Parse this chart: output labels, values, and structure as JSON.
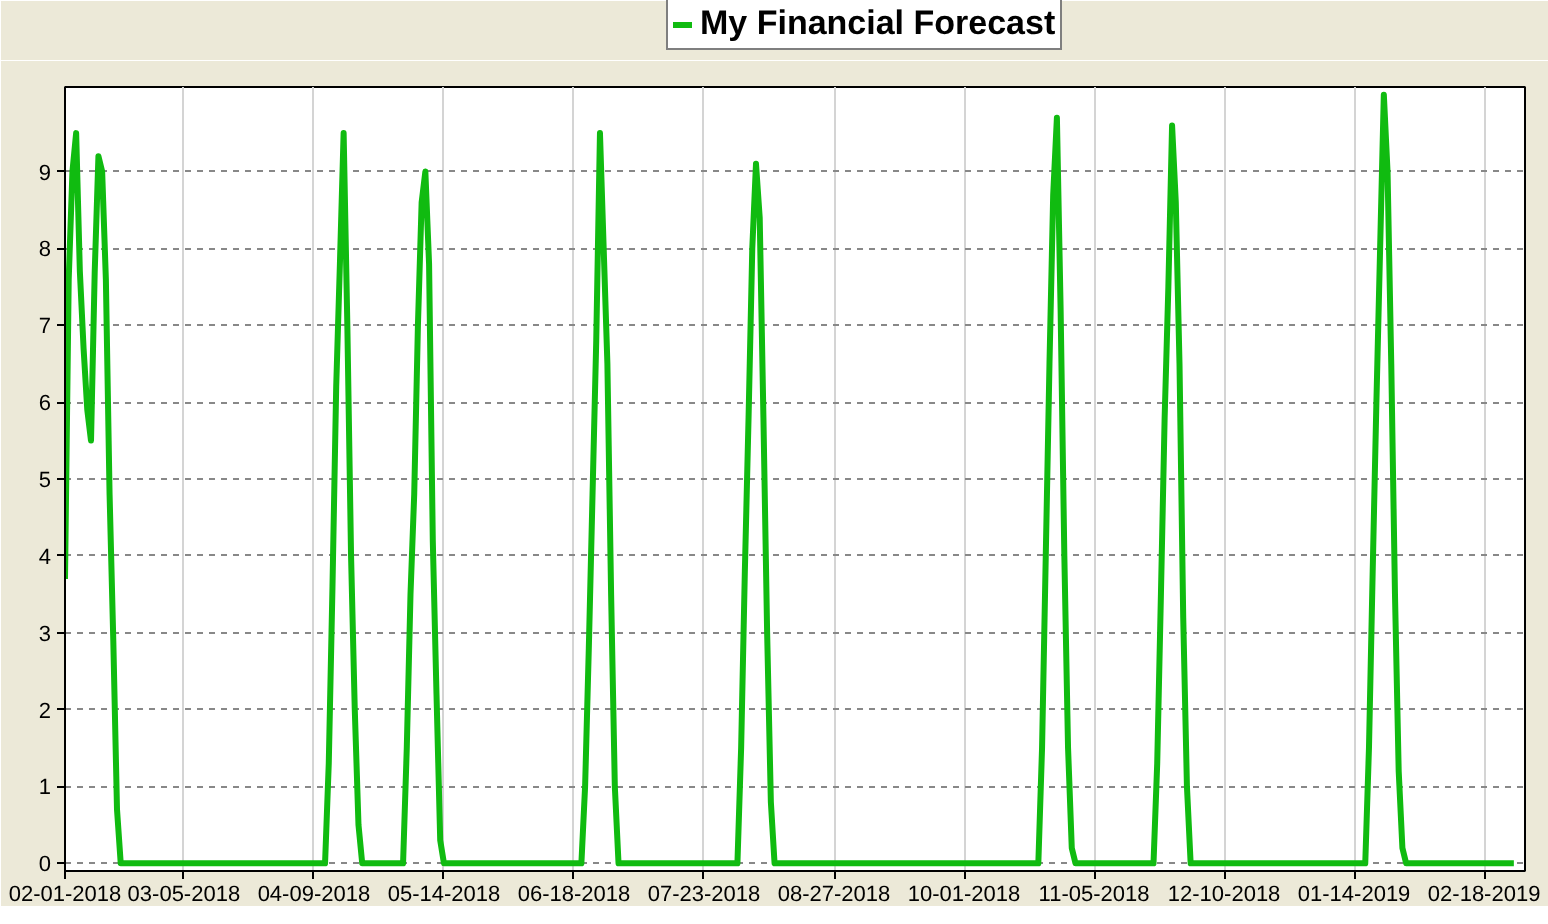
{
  "chart_data": {
    "type": "line",
    "series": [
      {
        "name": "My Financial Forecast",
        "color": "#10bb10",
        "x": [
          "2018-02-01",
          "2018-02-02",
          "2018-02-03",
          "2018-02-04",
          "2018-02-05",
          "2018-02-06",
          "2018-02-07",
          "2018-02-08",
          "2018-02-09",
          "2018-02-10",
          "2018-02-11",
          "2018-02-12",
          "2018-02-13",
          "2018-02-14",
          "2018-02-15",
          "2018-02-16",
          "2018-04-12",
          "2018-04-13",
          "2018-04-14",
          "2018-04-15",
          "2018-04-16",
          "2018-04-17",
          "2018-04-18",
          "2018-04-19",
          "2018-04-20",
          "2018-04-21",
          "2018-04-22",
          "2018-05-03",
          "2018-05-04",
          "2018-05-05",
          "2018-05-06",
          "2018-05-07",
          "2018-05-08",
          "2018-05-09",
          "2018-05-10",
          "2018-05-11",
          "2018-05-12",
          "2018-05-13",
          "2018-05-14",
          "2018-06-20",
          "2018-06-21",
          "2018-06-22",
          "2018-06-23",
          "2018-06-24",
          "2018-06-25",
          "2018-06-26",
          "2018-06-27",
          "2018-06-28",
          "2018-06-29",
          "2018-06-30",
          "2018-08-01",
          "2018-08-02",
          "2018-08-03",
          "2018-08-04",
          "2018-08-05",
          "2018-08-06",
          "2018-08-07",
          "2018-08-08",
          "2018-08-09",
          "2018-08-10",
          "2018-08-11",
          "2018-10-21",
          "2018-10-22",
          "2018-10-23",
          "2018-10-24",
          "2018-10-25",
          "2018-10-26",
          "2018-10-27",
          "2018-10-28",
          "2018-10-29",
          "2018-10-30",
          "2018-10-31",
          "2018-11-21",
          "2018-11-22",
          "2018-11-23",
          "2018-11-24",
          "2018-11-25",
          "2018-11-26",
          "2018-11-27",
          "2018-11-28",
          "2018-11-29",
          "2018-11-30",
          "2018-12-01",
          "2019-01-17",
          "2019-01-18",
          "2019-01-19",
          "2019-01-20",
          "2019-01-21",
          "2019-01-22",
          "2019-01-23",
          "2019-01-24",
          "2019-01-25",
          "2019-01-26",
          "2019-01-27",
          "2019-01-28",
          "2019-02-26"
        ],
        "values": [
          3.7,
          7.6,
          9.0,
          9.5,
          7.7,
          6.7,
          5.9,
          5.5,
          7.7,
          9.2,
          9.0,
          7.6,
          4.8,
          2.9,
          0.7,
          0,
          0,
          1.3,
          3.6,
          6.2,
          7.8,
          9.5,
          7.0,
          4.0,
          2.0,
          0.5,
          0,
          0,
          1.5,
          3.5,
          4.8,
          7.0,
          8.6,
          9.0,
          7.8,
          4.2,
          2.2,
          0.3,
          0,
          0,
          1.0,
          2.8,
          4.8,
          6.8,
          9.5,
          8.0,
          6.5,
          3.5,
          1.0,
          0,
          0,
          1.5,
          3.8,
          5.8,
          8.0,
          9.1,
          8.4,
          5.8,
          3.0,
          0.8,
          0,
          0,
          1.5,
          4.0,
          6.5,
          8.7,
          9.7,
          7.2,
          4.0,
          1.5,
          0.2,
          0,
          0,
          1.3,
          3.5,
          5.8,
          7.5,
          9.6,
          8.6,
          6.5,
          3.2,
          1.0,
          0,
          0,
          1.5,
          3.8,
          6.0,
          8.0,
          10.0,
          9.0,
          6.5,
          3.5,
          1.2,
          0.2,
          0,
          0
        ]
      }
    ],
    "xlim": [
      "2018-02-01",
      "2019-03-01"
    ],
    "ylim": [
      -0.1,
      10.1
    ],
    "xticks": [
      {
        "value": "2018-02-01",
        "label": "02-01-2018"
      },
      {
        "value": "2018-03-05",
        "label": "03-05-2018"
      },
      {
        "value": "2018-04-09",
        "label": "04-09-2018"
      },
      {
        "value": "2018-05-14",
        "label": "05-14-2018"
      },
      {
        "value": "2018-06-18",
        "label": "06-18-2018"
      },
      {
        "value": "2018-07-23",
        "label": "07-23-2018"
      },
      {
        "value": "2018-08-27",
        "label": "08-27-2018"
      },
      {
        "value": "2018-10-01",
        "label": "10-01-2018"
      },
      {
        "value": "2018-11-05",
        "label": "11-05-2018"
      },
      {
        "value": "2018-12-10",
        "label": "12-10-2018"
      },
      {
        "value": "2019-01-14",
        "label": "01-14-2019"
      },
      {
        "value": "2019-02-18",
        "label": "02-18-2019"
      }
    ],
    "yticks": [
      0,
      1,
      2,
      3,
      4,
      5,
      6,
      7,
      8,
      9
    ],
    "grid": true,
    "legend": "top",
    "line_style": "solid"
  }
}
